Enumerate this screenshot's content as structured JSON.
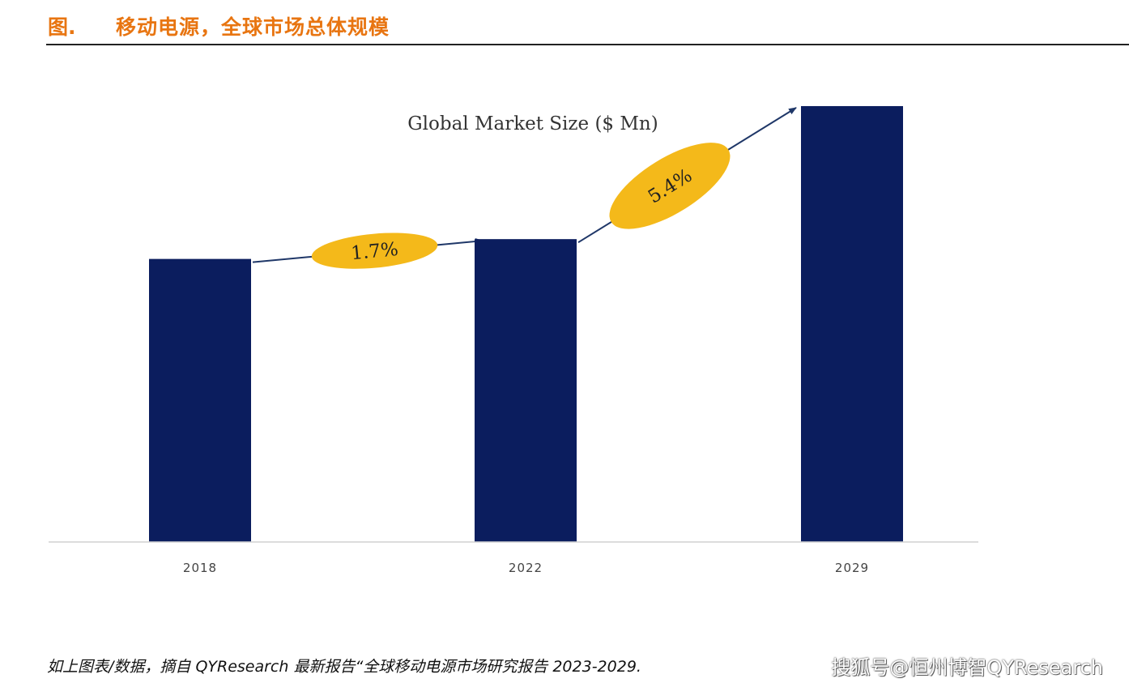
{
  "header": {
    "figure_label": "图.",
    "title": "移动电源，全球市场总体规模"
  },
  "chart_data": {
    "type": "bar",
    "title": "Global Market Size ($ Mn)",
    "categories": [
      "2018",
      "2022",
      "2029"
    ],
    "values": [
      100,
      107,
      154
    ],
    "xlabel": "",
    "ylabel": "",
    "ylim": [
      0,
      160
    ],
    "grid": false,
    "bar_color": "#0B1D5E",
    "growth_annotations": [
      {
        "from": "2018",
        "to": "2022",
        "label": "1.7%"
      },
      {
        "from": "2022",
        "to": "2029",
        "label": "5.4%"
      }
    ],
    "annotation_color": "#F4B91A",
    "arrow_color": "#1F3768"
  },
  "footer": {
    "source": "如上图表/数据，摘自 QYResearch 最新报告“全球移动电源市场研究报告 2023-2029.",
    "watermark": "搜狐号@恒州博智QYResearch"
  }
}
